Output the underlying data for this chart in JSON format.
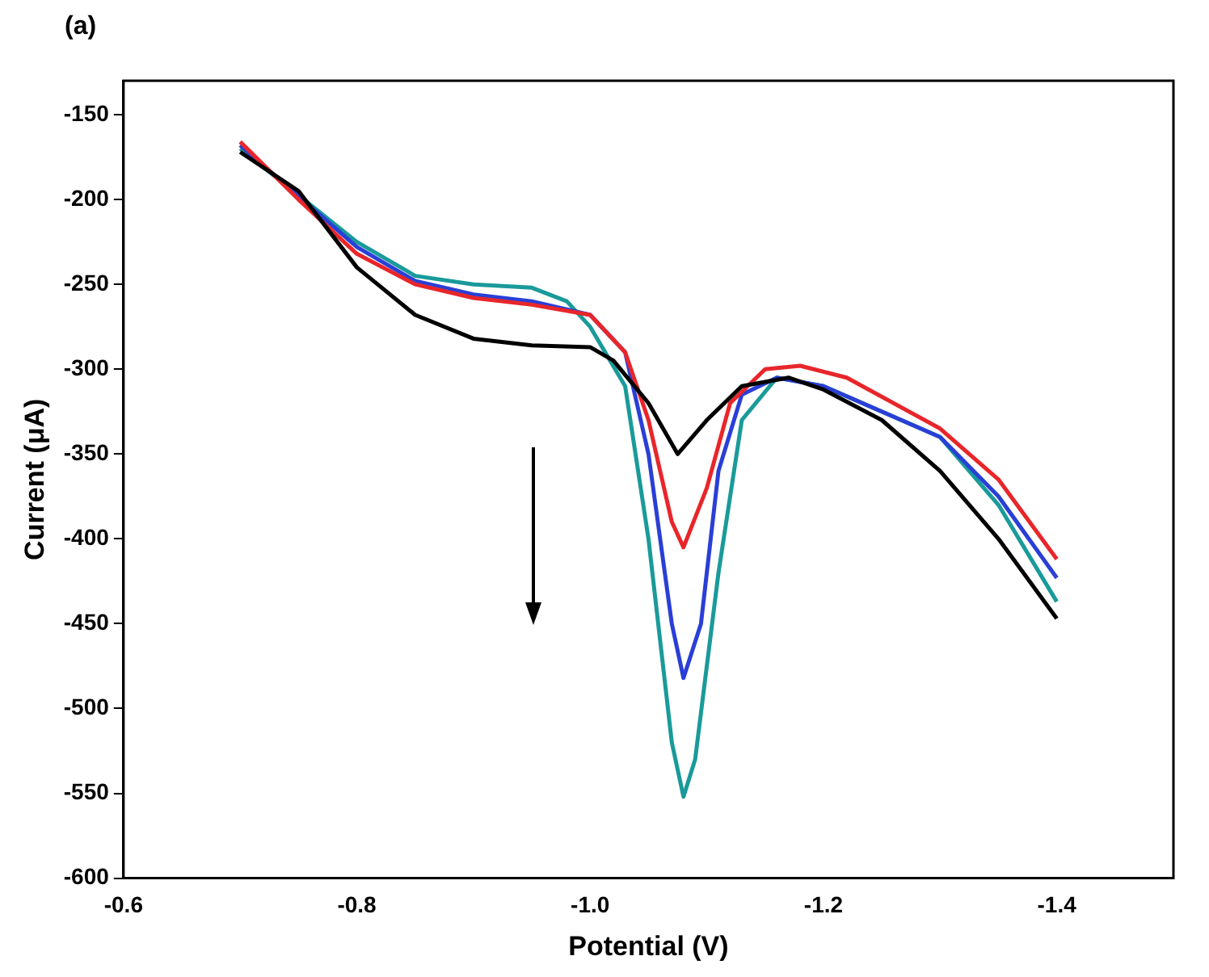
{
  "chart_data": {
    "type": "line",
    "xlabel": "Potential (V)",
    "ylabel": "Current (μA)",
    "annotations": [
      "(a)"
    ],
    "xlim": [
      -0.6,
      -1.5
    ],
    "xticks": [
      -0.6,
      -0.8,
      {
        "value": -1.0,
        "label": "-1.0"
      },
      -1.2,
      -1.4
    ],
    "ylim": [
      -600,
      -130
    ],
    "yticks": [
      -600,
      -550,
      -500,
      -450,
      -400,
      -350,
      -300,
      -250,
      -200,
      -150
    ],
    "grid": false,
    "legend": false,
    "marker": "none",
    "line_style": "solid",
    "series": [
      {
        "color": "#000000",
        "x": [
          -0.7,
          -0.75,
          -0.8,
          -0.85,
          -0.9,
          -0.95,
          -1.0,
          -1.02,
          -1.05,
          -1.075,
          -1.1,
          -1.13,
          -1.17,
          -1.2,
          -1.25,
          -1.3,
          -1.35,
          -1.4
        ],
        "values": [
          -172,
          -195,
          -240,
          -268,
          -282,
          -286,
          -287,
          -295,
          -320,
          -350,
          -330,
          -310,
          -305,
          -312,
          -330,
          -360,
          -400,
          -447
        ]
      },
      {
        "color": "#e8262a",
        "x": [
          -0.7,
          -0.75,
          -0.8,
          -0.85,
          -0.9,
          -0.95,
          -1.0,
          -1.03,
          -1.05,
          -1.07,
          -1.08,
          -1.1,
          -1.12,
          -1.15,
          -1.18,
          -1.22,
          -1.3,
          -1.35,
          -1.4
        ],
        "values": [
          -166,
          -200,
          -232,
          -250,
          -258,
          -262,
          -268,
          -290,
          -330,
          -390,
          -405,
          -370,
          -320,
          -300,
          -298,
          -305,
          -335,
          -365,
          -412
        ]
      },
      {
        "color": "#2a3fd6",
        "x": [
          -0.7,
          -0.8,
          -0.85,
          -0.9,
          -0.95,
          -1.0,
          -1.03,
          -1.05,
          -1.07,
          -1.08,
          -1.095,
          -1.11,
          -1.13,
          -1.16,
          -1.2,
          -1.3,
          -1.35,
          -1.4
        ],
        "values": [
          -168,
          -228,
          -248,
          -256,
          -260,
          -268,
          -290,
          -350,
          -450,
          -482,
          -450,
          -360,
          -315,
          -305,
          -310,
          -340,
          -375,
          -423
        ]
      },
      {
        "color": "#1a9a9a",
        "x": [
          -0.7,
          -0.8,
          -0.85,
          -0.9,
          -0.95,
          -0.98,
          -1.0,
          -1.03,
          -1.05,
          -1.07,
          -1.08,
          -1.09,
          -1.11,
          -1.13,
          -1.16,
          -1.2,
          -1.3,
          -1.35,
          -1.4
        ],
        "values": [
          -170,
          -225,
          -245,
          -250,
          -252,
          -260,
          -275,
          -310,
          -400,
          -520,
          -552,
          -530,
          -420,
          -330,
          -305,
          -310,
          -340,
          -380,
          -437
        ]
      }
    ]
  }
}
